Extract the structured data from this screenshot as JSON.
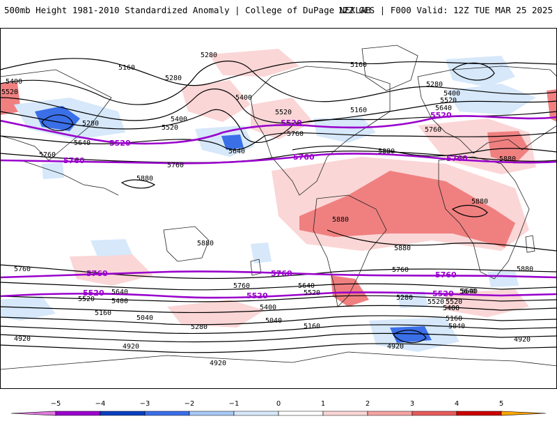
{
  "header": {
    "title_left": "500mb Height 1981-2010 Standardized Anomaly | College of DuPage NEXLAB",
    "title_right": "12Z GFS | F000 Valid: 12Z TUE MAR 25 2025"
  },
  "colors": {
    "contour_black": "#000000",
    "contour_purple": "#9900cc",
    "coastline": "#222222"
  },
  "map": {
    "black_contour_labels": [
      {
        "id": "l1",
        "text": "5280"
      },
      {
        "id": "l2",
        "text": "5160"
      },
      {
        "id": "l3",
        "text": "5280"
      },
      {
        "id": "l4",
        "text": "5400"
      },
      {
        "id": "l5",
        "text": "5520"
      },
      {
        "id": "l6",
        "text": "5280"
      },
      {
        "id": "l7",
        "text": "5400"
      },
      {
        "id": "l8",
        "text": "5520"
      },
      {
        "id": "l9",
        "text": "5400"
      },
      {
        "id": "l10",
        "text": "5640"
      },
      {
        "id": "l11",
        "text": "5640"
      },
      {
        "id": "l12",
        "text": "5760"
      },
      {
        "id": "l13",
        "text": "5760"
      },
      {
        "id": "l14",
        "text": "5880"
      },
      {
        "id": "l15",
        "text": "5520"
      },
      {
        "id": "l16",
        "text": "5760"
      },
      {
        "id": "l17",
        "text": "5160"
      },
      {
        "id": "l18",
        "text": "5160"
      },
      {
        "id": "l19",
        "text": "5280"
      },
      {
        "id": "l20",
        "text": "5400"
      },
      {
        "id": "l21",
        "text": "5520"
      },
      {
        "id": "l22",
        "text": "5640"
      },
      {
        "id": "l23",
        "text": "5760"
      },
      {
        "id": "l24",
        "text": "5880"
      },
      {
        "id": "l25",
        "text": "5880"
      },
      {
        "id": "l26",
        "text": "5880"
      },
      {
        "id": "l27",
        "text": "5880"
      },
      {
        "id": "l28",
        "text": "5880"
      },
      {
        "id": "l29",
        "text": "5880"
      },
      {
        "id": "l30",
        "text": "5880"
      },
      {
        "id": "l31",
        "text": "5760"
      },
      {
        "id": "l32",
        "text": "5640"
      },
      {
        "id": "l33",
        "text": "5520"
      },
      {
        "id": "l34",
        "text": "5400"
      },
      {
        "id": "l35",
        "text": "5760"
      },
      {
        "id": "l36",
        "text": "5640"
      },
      {
        "id": "l37",
        "text": "5520"
      },
      {
        "id": "l38",
        "text": "5400"
      },
      {
        "id": "l39",
        "text": "5160"
      },
      {
        "id": "l40",
        "text": "5040"
      },
      {
        "id": "l41",
        "text": "5280"
      },
      {
        "id": "l42",
        "text": "5760"
      },
      {
        "id": "l43",
        "text": "5640"
      },
      {
        "id": "l44",
        "text": "5520"
      },
      {
        "id": "l45",
        "text": "5400"
      },
      {
        "id": "l46",
        "text": "5040"
      },
      {
        "id": "l47",
        "text": "5160"
      },
      {
        "id": "l48",
        "text": "5280"
      },
      {
        "id": "l49",
        "text": "5640"
      },
      {
        "id": "l50",
        "text": "5520"
      },
      {
        "id": "l51",
        "text": "5400"
      },
      {
        "id": "l52",
        "text": "5160"
      },
      {
        "id": "l53",
        "text": "5040"
      },
      {
        "id": "l54",
        "text": "4920"
      },
      {
        "id": "l55",
        "text": "4920"
      },
      {
        "id": "l56",
        "text": "4920"
      },
      {
        "id": "l57",
        "text": "4920"
      },
      {
        "id": "l58",
        "text": "4920"
      }
    ],
    "purple_contour_labels": [
      {
        "id": "p1",
        "text": "5520"
      },
      {
        "id": "p2",
        "text": "5520"
      },
      {
        "id": "p3",
        "text": "5520"
      },
      {
        "id": "p4",
        "text": "5760"
      },
      {
        "id": "p5",
        "text": "5760"
      },
      {
        "id": "p6",
        "text": "5760"
      },
      {
        "id": "p7",
        "text": "5760"
      },
      {
        "id": "p8",
        "text": "5760"
      },
      {
        "id": "p9",
        "text": "5760"
      },
      {
        "id": "p10",
        "text": "5520"
      },
      {
        "id": "p11",
        "text": "5520"
      },
      {
        "id": "p12",
        "text": "5520"
      }
    ]
  },
  "colorbar": {
    "ticks": [
      "−5",
      "−4",
      "−3",
      "−2",
      "−1",
      "0",
      "1",
      "2",
      "3",
      "4",
      "5"
    ],
    "colors": [
      "#e07be0",
      "#9900cc",
      "#0a3fbf",
      "#3a6fe8",
      "#a8c8f5",
      "#d6e8fa",
      "#ffffff",
      "#fbd6d6",
      "#f5a3a3",
      "#e85b5b",
      "#cc0000",
      "#ffa600"
    ]
  }
}
